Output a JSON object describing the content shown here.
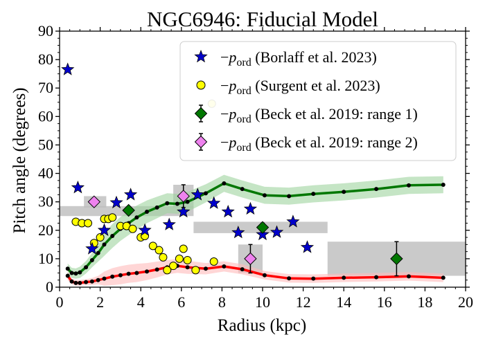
{
  "chart_data": {
    "type": "scatter",
    "title": "NGC6946: Fiducial Model",
    "xlabel": "Radius (kpc)",
    "ylabel": "Pitch angle (degrees)",
    "xlim": [
      0,
      20
    ],
    "ylim": [
      0,
      90
    ],
    "xticks": [
      "0",
      "2",
      "4",
      "6",
      "8",
      "10",
      "12",
      "14",
      "16",
      "18",
      "20"
    ],
    "yticks": [
      "0",
      "10",
      "20",
      "30",
      "40",
      "50",
      "60",
      "70",
      "80",
      "90"
    ],
    "legend_position": "top-right",
    "legend": [
      {
        "prefix": "−",
        "symbol": "p",
        "sub": "ord",
        "text": " (Borlaff et al. 2023)",
        "marker": "star",
        "color": "#0000cc"
      },
      {
        "prefix": "−",
        "symbol": "p",
        "sub": "ord",
        "text": " (Surgent et al. 2023)",
        "marker": "circle",
        "color": "#ffff00"
      },
      {
        "prefix": "−",
        "symbol": "p",
        "sub": "ord",
        "text": " (Beck et al. 2019: range 1)",
        "marker": "diamond",
        "color": "#007700"
      },
      {
        "prefix": "−",
        "symbol": "p",
        "sub": "ord",
        "text": " (Beck et al. 2019: range 2)",
        "marker": "diamond",
        "color": "#ee82ee"
      }
    ],
    "model_lines": [
      {
        "color": "#007700",
        "band_color": "#9fd49f",
        "x": [
          0.4,
          0.6,
          0.8,
          1.0,
          1.3,
          1.6,
          1.9,
          2.2,
          2.6,
          3.0,
          3.4,
          3.8,
          4.3,
          4.8,
          5.3,
          5.8,
          6.3,
          7.2,
          8.1,
          9.0,
          10.1,
          11.3,
          12.5,
          14.0,
          15.6,
          17.2,
          18.9
        ],
        "y": [
          6.5,
          5,
          4.8,
          5.2,
          7,
          9.5,
          12,
          15,
          18,
          20.5,
          22.5,
          24.5,
          26.5,
          28,
          29.5,
          29.3,
          30,
          33,
          36.5,
          34.5,
          32.3,
          32,
          32.8,
          33.5,
          34.5,
          35.8,
          36
        ],
        "band": [
          1.8,
          1.8,
          1.8,
          2,
          2.2,
          2.5,
          3,
          4,
          4.2,
          4.2,
          4.2,
          4.2,
          4,
          3.8,
          3.5,
          3.5,
          3.5,
          3.2,
          3,
          3,
          3,
          3,
          3,
          3,
          3,
          3,
          3
        ]
      },
      {
        "color": "#ff0000",
        "band_color": "#ffbbbb",
        "x": [
          0.4,
          0.6,
          0.8,
          1.0,
          1.3,
          1.6,
          1.9,
          2.2,
          2.6,
          3.0,
          3.4,
          3.8,
          4.3,
          4.8,
          5.3,
          5.8,
          6.3,
          7.2,
          8.1,
          9.0,
          10.1,
          11.3,
          12.5,
          14.0,
          15.6,
          17.2,
          18.9
        ],
        "y": [
          4,
          2,
          1.5,
          1.5,
          1.8,
          2,
          2.5,
          3,
          3.7,
          4.2,
          4.7,
          5,
          5.5,
          6.2,
          7,
          7.5,
          7,
          6.5,
          7.3,
          6.3,
          4.2,
          3.1,
          3,
          3.3,
          3.5,
          3.8,
          3.3
        ],
        "band": [
          1.5,
          1,
          1,
          1,
          1,
          1.2,
          1.5,
          2.5,
          3,
          3.2,
          3.2,
          3.2,
          3,
          2.8,
          2.5,
          2.5,
          2.3,
          2,
          1.8,
          1.8,
          1.5,
          1.5,
          1.5,
          1.5,
          1.5,
          1.5,
          1.5
        ]
      }
    ],
    "borlaff_2023": {
      "x": [
        0.4,
        0.9,
        1.6,
        2.2,
        2.8,
        3.5,
        4.2,
        5.4,
        6.1,
        6.8,
        7.6,
        8.3,
        8.8,
        9.4,
        10.0,
        10.7,
        11.5,
        12.2
      ],
      "y": [
        76.5,
        35,
        13.5,
        20,
        29.7,
        32.5,
        20,
        22,
        26.5,
        32.5,
        29.5,
        26.5,
        19.2,
        27.5,
        18.5,
        19.3,
        23,
        14
      ]
    },
    "surgent_2023": {
      "x": [
        0.8,
        1.1,
        1.4,
        1.7,
        2.0,
        2.2,
        2.4,
        2.6,
        3.0,
        3.3,
        3.6,
        4.0,
        4.2,
        4.6,
        4.9,
        5.1,
        5.3,
        5.6,
        5.9,
        6.1,
        6.3,
        6.7,
        7.6
      ],
      "y": [
        23,
        22.5,
        22.5,
        15.5,
        17.5,
        24,
        24,
        24.5,
        21.5,
        21.5,
        20.5,
        17.5,
        18,
        14.5,
        13,
        10.5,
        6,
        7.5,
        10,
        13.5,
        9.5,
        6,
        9
      ]
    },
    "surgent_outlier": {
      "x": 7.5,
      "y": 64.5
    },
    "beck_range1": {
      "x": [
        3.4,
        10.0,
        16.6
      ],
      "y": [
        27,
        21,
        10
      ],
      "err": [
        0,
        1.5,
        6
      ]
    },
    "beck_range2": {
      "x": [
        1.7,
        6.1,
        9.4
      ],
      "y": [
        30,
        32,
        10
      ],
      "err": [
        0,
        4,
        5
      ]
    },
    "gray_boxes": [
      {
        "x0": 0,
        "x1": 6.6,
        "y0": 25,
        "y1": 28.5
      },
      {
        "x0": 1.2,
        "x1": 2.3,
        "y0": 28,
        "y1": 32
      },
      {
        "x0": 5.6,
        "x1": 6.6,
        "y0": 28,
        "y1": 36
      },
      {
        "x0": 6.6,
        "x1": 13.2,
        "y0": 19,
        "y1": 23
      },
      {
        "x0": 8.8,
        "x1": 10.0,
        "y0": 5,
        "y1": 15
      },
      {
        "x0": 13.2,
        "x1": 20,
        "y0": 4,
        "y1": 16
      }
    ]
  }
}
